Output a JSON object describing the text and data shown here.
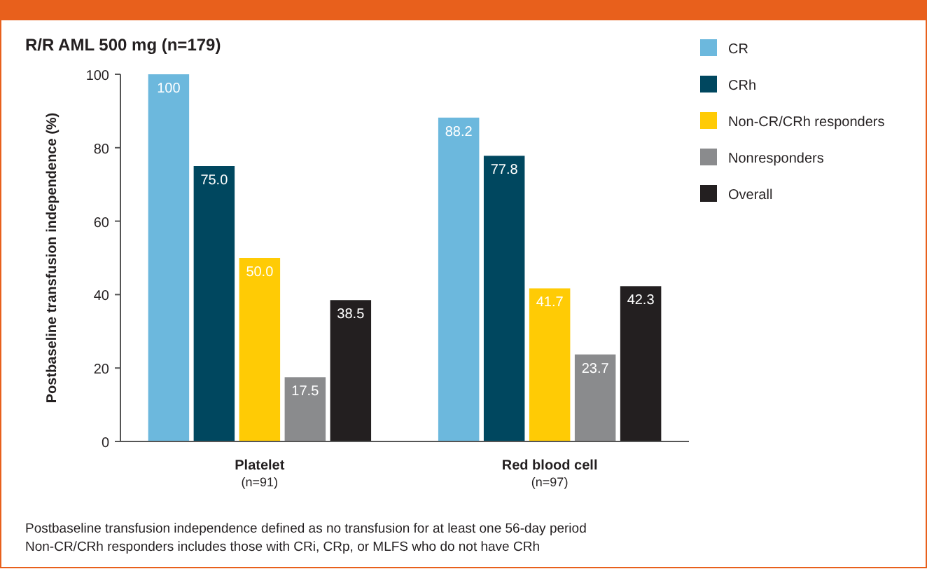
{
  "chart_data": {
    "type": "bar",
    "title": "R/R AML 500 mg (n=179)",
    "ylabel": "Postbaseline transfusion independence (%)",
    "categories": [
      "Platelet\n(n=91)",
      "Red blood cell\n(n=97)"
    ],
    "series": [
      {
        "name": "CR",
        "color": "#6cb8dd",
        "values": [
          100,
          88.2
        ],
        "value_labels": [
          "100",
          "88.2"
        ]
      },
      {
        "name": "CRh",
        "color": "#00475f",
        "values": [
          75.0,
          77.8
        ],
        "value_labels": [
          "75.0",
          "77.8"
        ]
      },
      {
        "name": "Non-CR/CRh responders",
        "color": "#ffcb05",
        "values": [
          50.0,
          41.7
        ],
        "value_labels": [
          "50.0",
          "41.7"
        ]
      },
      {
        "name": "Nonresponders",
        "color": "#8a8b8d",
        "values": [
          17.5,
          23.7
        ],
        "value_labels": [
          "17.5",
          "23.7"
        ]
      },
      {
        "name": "Overall",
        "color": "#231f20",
        "values": [
          38.5,
          42.3
        ],
        "value_labels": [
          "38.5",
          "42.3"
        ]
      }
    ],
    "ylim": [
      0,
      100
    ],
    "yticks": [
      0,
      20,
      40,
      60,
      80,
      100
    ],
    "grid": false,
    "legend": "right",
    "annotations": [
      "Postbaseline transfusion independence defined as no transfusion for at least one 56-day period",
      "Non-CR/CRh responders includes those with CRi, CRp, or MLFS who do not have CRh"
    ]
  }
}
